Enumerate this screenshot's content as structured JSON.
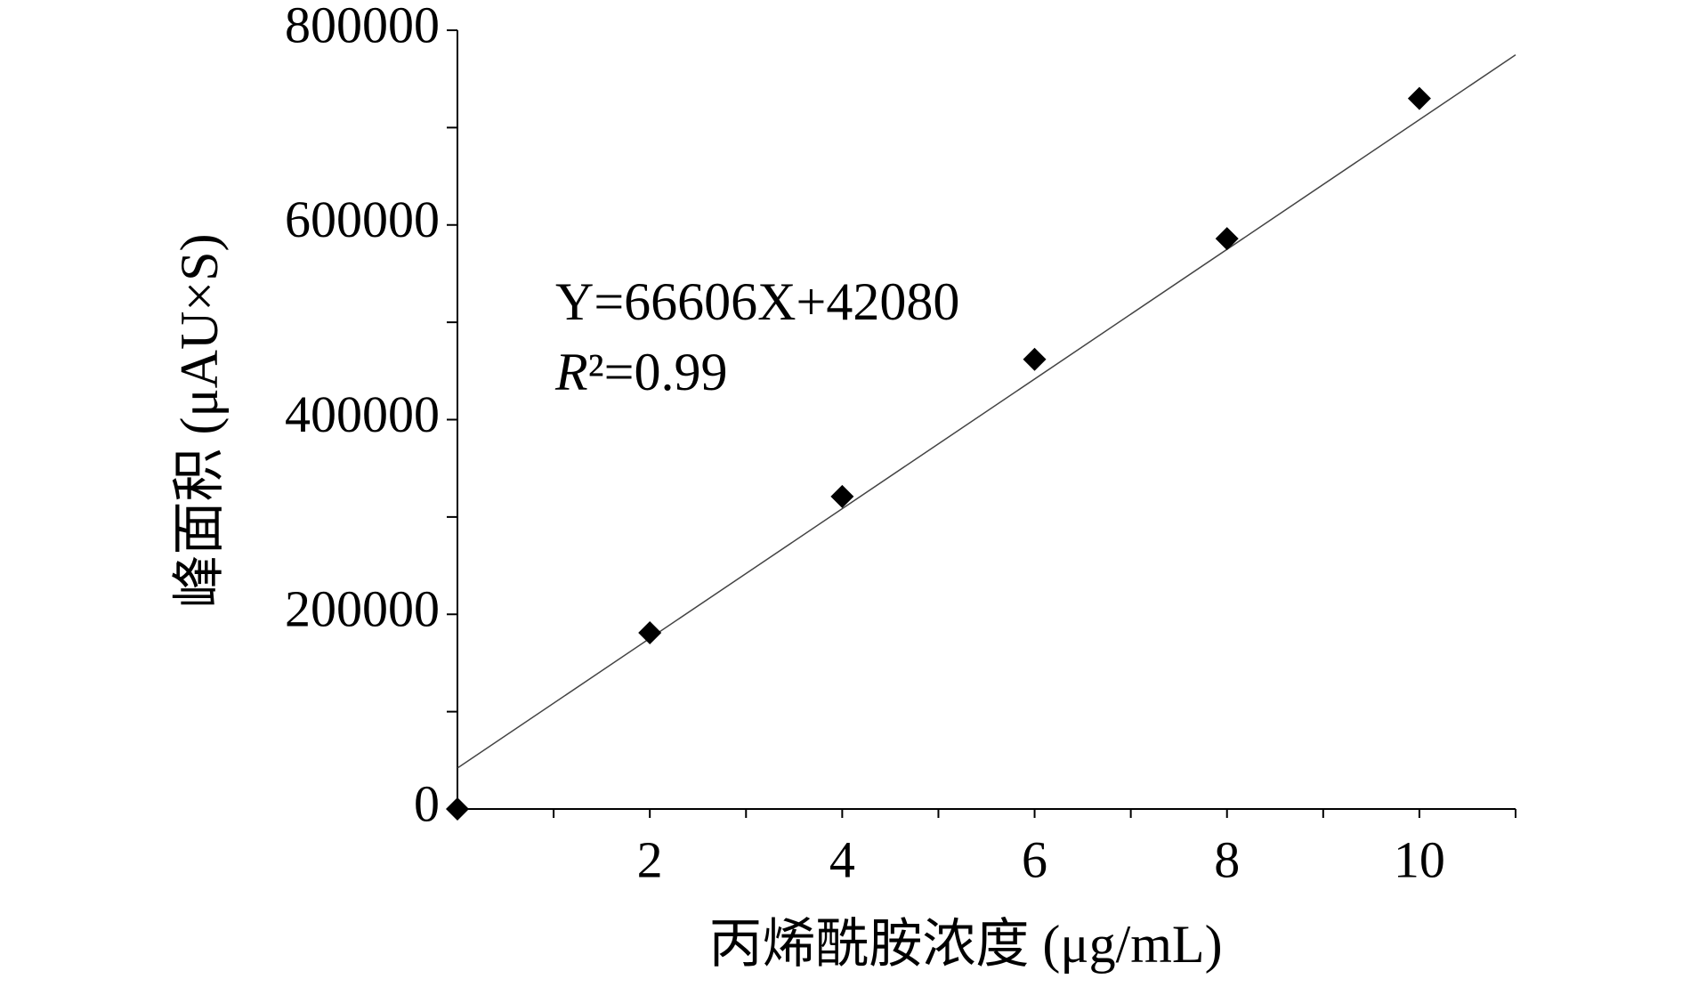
{
  "chart_data": {
    "type": "scatter",
    "x_label": "丙烯酰胺浓度 (μg/mL)",
    "y_label": "峰面积 (μAU×S)",
    "annotations": [
      "Y=66606X+42080",
      "R²=0.99"
    ],
    "x": [
      0,
      2,
      4,
      6,
      8,
      10
    ],
    "values": [
      0,
      181000,
      321000,
      462000,
      586000,
      730000
    ],
    "color": "#000000",
    "fit": {
      "slope": 66606,
      "intercept": 42080
    },
    "xlim": [
      0,
      11
    ],
    "xticks": [
      2,
      4,
      6,
      8,
      10
    ],
    "xminorticks": [
      1,
      3,
      5,
      7,
      9,
      11
    ],
    "ylim": [
      0,
      800000
    ],
    "yticks": [
      0,
      200000,
      400000,
      600000,
      800000
    ],
    "yminorticks": [
      100000,
      300000,
      500000,
      700000
    ]
  }
}
